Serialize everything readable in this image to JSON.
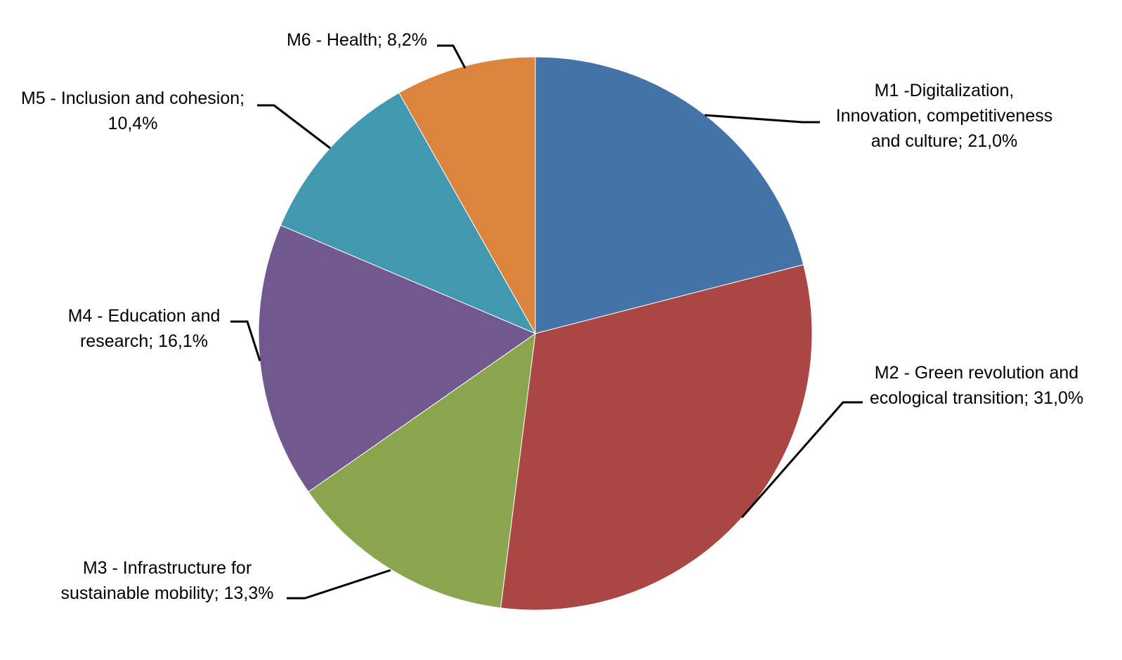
{
  "chart_data": {
    "type": "pie",
    "title": "",
    "start": "12 o'clock",
    "direction": "clockwise",
    "slices": [
      {
        "id": "m1",
        "label": "M1 -Digitalization, Innovation, competitiveness and culture",
        "value": 21.0,
        "value_text": "21,0%",
        "color": "#4572A7",
        "label_lines": [
          "M1 -Digitalization,",
          "Innovation, competitiveness",
          "and culture; 21,0%"
        ]
      },
      {
        "id": "m2",
        "label": "M2 - Green revolution and ecological transition",
        "value": 31.0,
        "value_text": "31,0%",
        "color": "#AA4643",
        "label_lines": [
          "M2 - Green revolution and",
          "ecological transition; 31,0%"
        ]
      },
      {
        "id": "m3",
        "label": "M3 - Infrastructure for sustainable mobility",
        "value": 13.3,
        "value_text": "13,3%",
        "color": "#89A54E",
        "label_lines": [
          "M3 - Infrastructure for",
          "sustainable mobility; 13,3%"
        ]
      },
      {
        "id": "m4",
        "label": "M4 - Education and research",
        "value": 16.1,
        "value_text": "16,1%",
        "color": "#71588F",
        "label_lines": [
          "M4 - Education and",
          "research; 16,1%"
        ]
      },
      {
        "id": "m5",
        "label": "M5 - Inclusion and cohesion",
        "value": 10.4,
        "value_text": "10,4%",
        "color": "#4198AF",
        "label_lines": [
          "M5 - Inclusion and cohesion;",
          "10,4%"
        ]
      },
      {
        "id": "m6",
        "label": "M6 - Health",
        "value": 8.2,
        "value_text": "8,2%",
        "color": "#DB843D",
        "label_lines": [
          "M6 - Health; 8,2%"
        ]
      }
    ]
  }
}
